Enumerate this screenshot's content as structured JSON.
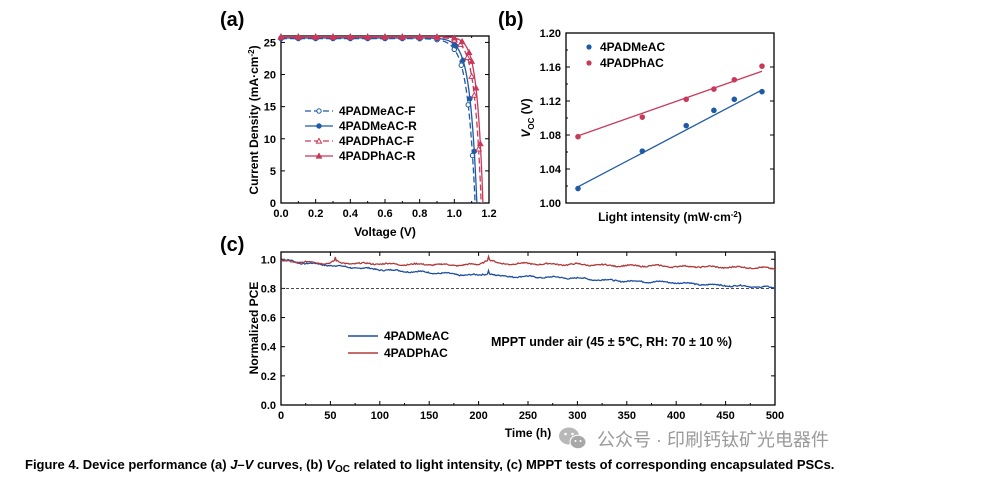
{
  "colors": {
    "meac": "#1f5aa6",
    "phac": "#c8395a",
    "mppt_meac": "#1f4fa0",
    "mppt_phac": "#b03a3a"
  },
  "chart_data": [
    {
      "id": "a",
      "panel_label": "(a)",
      "type": "line",
      "xlabel": "Voltage (V)",
      "ylabel_main": "Current Density (mA·cm",
      "ylabel_sup": "-2",
      "ylabel_end": ")",
      "xlim": [
        0.0,
        1.2
      ],
      "ylim": [
        0,
        26
      ],
      "xticks": [
        0.0,
        0.1,
        0.2,
        0.3,
        0.4,
        0.5,
        0.6,
        0.7,
        0.8,
        0.9,
        1.0,
        1.1,
        1.2
      ],
      "xtick_labels": [
        "0.0",
        "0.2",
        "0.4",
        "0.6",
        "0.8",
        "1.0",
        "1.2"
      ],
      "xtick_label_values": [
        0.0,
        0.2,
        0.4,
        0.6,
        0.8,
        1.0,
        1.2
      ],
      "yticks": [
        0,
        5,
        10,
        15,
        20,
        25
      ],
      "ytick_labels": [
        "0",
        "5",
        "10",
        "15",
        "20",
        "25"
      ],
      "legend_position": "center-right",
      "series": [
        {
          "name": "4PADMeAC-F",
          "color_key": "meac",
          "dash": "6,3",
          "jsc": 25.6,
          "voc": 1.12,
          "n": 0.044,
          "marker": "circle-open"
        },
        {
          "name": "4PADMeAC-R",
          "color_key": "meac",
          "dash": "",
          "jsc": 25.7,
          "voc": 1.13,
          "n": 0.04,
          "marker": "circle-filled"
        },
        {
          "name": "4PADPhAC-F",
          "color_key": "phac",
          "dash": "6,3",
          "jsc": 25.8,
          "voc": 1.155,
          "n": 0.038,
          "marker": "tri-open"
        },
        {
          "name": "4PADPhAC-R",
          "color_key": "phac",
          "dash": "",
          "jsc": 25.9,
          "voc": 1.165,
          "n": 0.034,
          "marker": "tri-filled"
        }
      ]
    },
    {
      "id": "b",
      "panel_label": "(b)",
      "type": "scatter",
      "xlabel_main": "Light intensity (mW·cm",
      "xlabel_sup": "-2",
      "xlabel_end": ")",
      "ylabel_main": "V",
      "ylabel_sub": "OC",
      "ylabel_end": " (V)",
      "xscale": "log",
      "ylim": [
        1.0,
        1.2
      ],
      "yticks": [
        1.0,
        1.04,
        1.08,
        1.12,
        1.16,
        1.2
      ],
      "ytick_labels": [
        "1.00",
        "1.04",
        "1.08",
        "1.12",
        "1.16",
        "1.20"
      ],
      "x_decades": [
        0,
        2.3
      ],
      "legend_position": "top-left",
      "series": [
        {
          "name": "4PADMeAC",
          "color_key": "meac",
          "x": [
            1,
            5,
            15,
            30,
            50,
            100
          ],
          "y": [
            1.017,
            1.061,
            1.091,
            1.109,
            1.122,
            1.131
          ],
          "fit": [
            1.019,
            1.133
          ]
        },
        {
          "name": "4PADPhAC",
          "color_key": "phac",
          "x": [
            1,
            5,
            15,
            30,
            50,
            100
          ],
          "y": [
            1.078,
            1.101,
            1.122,
            1.134,
            1.145,
            1.161
          ],
          "fit": [
            1.079,
            1.155
          ]
        }
      ]
    },
    {
      "id": "c",
      "panel_label": "(c)",
      "type": "line",
      "xlabel": "Time (h)",
      "ylabel": "Normalized PCE",
      "xlim": [
        0,
        500
      ],
      "ylim": [
        0.0,
        1.05
      ],
      "xticks": [
        0,
        50,
        100,
        150,
        200,
        250,
        300,
        350,
        400,
        450,
        500
      ],
      "xtick_labels": [
        "0",
        "50",
        "100",
        "150",
        "200",
        "250",
        "300",
        "350",
        "400",
        "450",
        "500"
      ],
      "yticks": [
        0.0,
        0.2,
        0.4,
        0.6,
        0.8,
        1.0
      ],
      "ytick_labels": [
        "0.0",
        "0.2",
        "0.4",
        "0.6",
        "0.8",
        "1.0"
      ],
      "reference_line": 0.8,
      "annotation": "MPPT under air (45 ± 5℃, RH: 70 ± 10 %)",
      "legend_position": "center-left",
      "series": [
        {
          "name": "4PADMeAC",
          "color_key": "mppt_meac",
          "t": [
            0,
            10,
            20,
            30,
            40,
            50,
            55,
            60,
            80,
            100,
            120,
            150,
            180,
            200,
            210,
            220,
            250,
            280,
            300,
            320,
            350,
            380,
            400,
            420,
            450,
            470,
            490,
            500
          ],
          "v": [
            0.99,
            0.99,
            0.975,
            0.97,
            0.965,
            0.96,
            0.955,
            0.95,
            0.94,
            0.93,
            0.92,
            0.91,
            0.895,
            0.89,
            0.905,
            0.885,
            0.88,
            0.875,
            0.87,
            0.86,
            0.85,
            0.845,
            0.84,
            0.83,
            0.82,
            0.815,
            0.81,
            0.8
          ]
        },
        {
          "name": "4PADPhAC",
          "color_key": "mppt_phac",
          "t": [
            0,
            10,
            20,
            30,
            40,
            50,
            55,
            60,
            80,
            100,
            120,
            150,
            180,
            200,
            210,
            220,
            250,
            280,
            300,
            320,
            350,
            380,
            400,
            420,
            450,
            470,
            490,
            500
          ],
          "v": [
            0.99,
            0.985,
            0.98,
            0.98,
            0.975,
            0.975,
            0.99,
            0.975,
            0.97,
            0.97,
            0.965,
            0.965,
            0.96,
            0.965,
            1.0,
            0.97,
            0.97,
            0.965,
            0.965,
            0.96,
            0.955,
            0.955,
            0.95,
            0.95,
            0.945,
            0.945,
            0.94,
            0.935
          ]
        }
      ]
    }
  ],
  "caption": {
    "prefix": "Figure 4. Device performance (a) ",
    "jv": "J–V",
    "mid1": " curves, (b) ",
    "voc_v": "V",
    "voc_sub": "OC",
    "mid2": " related to light intensity, (c) MPPT tests of corresponding encapsulated PSCs."
  },
  "watermark": "公众号 · 印刷钙钛矿光电器件"
}
